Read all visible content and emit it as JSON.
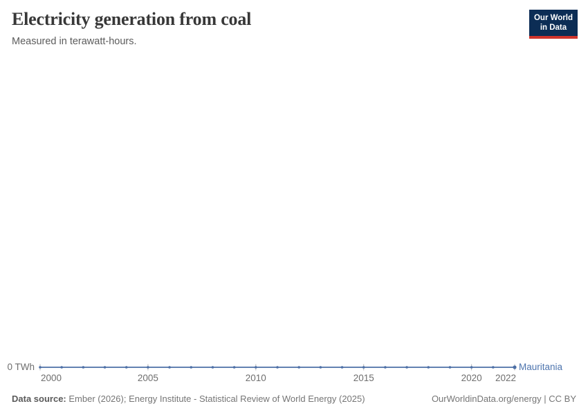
{
  "header": {
    "title": "Electricity generation from coal",
    "subtitle": "Measured in terawatt-hours.",
    "logo": {
      "line1": "Our World",
      "line2": "in Data"
    }
  },
  "chart_data": {
    "type": "line",
    "title": "Electricity generation from coal",
    "subtitle": "Measured in terawatt-hours.",
    "xlabel": "",
    "ylabel": "terawatt-hours",
    "x": [
      2000,
      2001,
      2002,
      2003,
      2004,
      2005,
      2006,
      2007,
      2008,
      2009,
      2010,
      2011,
      2012,
      2013,
      2014,
      2015,
      2016,
      2017,
      2018,
      2019,
      2020,
      2021,
      2022
    ],
    "series": [
      {
        "name": "Mauritania",
        "color": "#4c6fa6",
        "values": [
          0,
          0,
          0,
          0,
          0,
          0,
          0,
          0,
          0,
          0,
          0,
          0,
          0,
          0,
          0,
          0,
          0,
          0,
          0,
          0,
          0,
          0,
          0
        ]
      }
    ],
    "x_ticks": [
      2000,
      2005,
      2010,
      2015,
      2020,
      2022
    ],
    "y_ticks": [
      {
        "value": 0,
        "label": "0 TWh"
      }
    ],
    "xlim": [
      2000,
      2022
    ],
    "ylim": [
      0,
      1
    ],
    "grid": false,
    "legend_position": "end-of-line"
  },
  "footer": {
    "source_label": "Data source:",
    "source_text": " Ember (2026); Energy Institute - Statistical Review of World Energy (2025)",
    "right_text": "OurWorldinData.org/energy | CC BY"
  },
  "colors": {
    "line": "#4c6fa6",
    "entity_label": "#4d74ae",
    "axis_text": "#6e6e6e",
    "tick": "#b5b5b5",
    "logo_bg": "#0c2d55",
    "logo_red": "#d0342c",
    "title_text": "#383838"
  }
}
